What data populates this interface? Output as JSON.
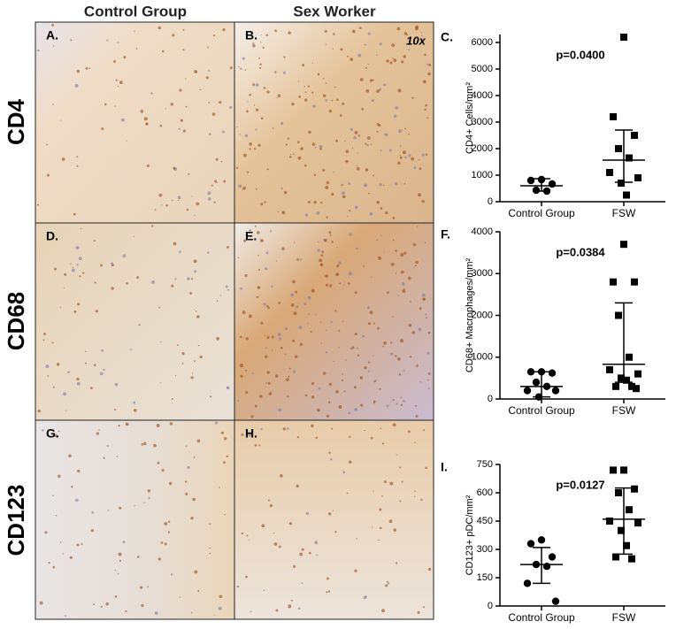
{
  "figure": {
    "column_headers": [
      "Control Group",
      "Sex Worker"
    ],
    "row_labels": [
      "CD4",
      "CD68",
      "CD123"
    ],
    "panels": [
      "A.",
      "B.",
      "D.",
      "E.",
      "G.",
      "H."
    ],
    "magnification": "10x"
  },
  "chart_data": [
    {
      "type": "scatter",
      "panel_label": "C.",
      "annotation": "p=0.0400",
      "y_label": "CD4+ Cells/mm²",
      "categories": [
        "Control Group",
        "FSW"
      ],
      "points": [
        [
          833,
          800,
          667,
          433,
          400
        ],
        [
          6200,
          3200,
          2500,
          2000,
          1650,
          1100,
          900,
          700,
          250
        ]
      ],
      "center": [
        600,
        1567
      ],
      "upper": [
        867,
        2700
      ],
      "lower": [
        400,
        733
      ],
      "ylim": [
        0,
        6300
      ],
      "yticks": [
        0,
        1000,
        2000,
        3000,
        4000,
        5000,
        6000
      ]
    },
    {
      "type": "scatter",
      "panel_label": "F.",
      "annotation": "p=0.0384",
      "y_label": "CD68+ Macrophages/mm²",
      "categories": [
        "Control Group",
        "FSW"
      ],
      "points": [
        [
          650,
          650,
          620,
          400,
          300,
          200,
          200,
          50
        ],
        [
          3700,
          2800,
          2800,
          2000,
          1000,
          700,
          600,
          500,
          450,
          300,
          300,
          250
        ]
      ],
      "center": [
        300,
        830
      ],
      "upper": [
        650,
        2300
      ],
      "lower": [
        50,
        400
      ],
      "ylim": [
        0,
        4000
      ],
      "yticks": [
        0,
        1000,
        2000,
        3000,
        4000
      ]
    },
    {
      "type": "scatter",
      "panel_label": "I.",
      "annotation": "p=0.0127",
      "y_label": "CD123+ pDC/mm²",
      "categories": [
        "Control Group",
        "FSW"
      ],
      "points": [
        [
          350,
          330,
          260,
          220,
          210,
          120,
          25
        ],
        [
          720,
          720,
          620,
          600,
          510,
          450,
          440,
          400,
          320,
          260,
          250
        ]
      ],
      "center": [
        220,
        460
      ],
      "upper": [
        310,
        625
      ],
      "lower": [
        120,
        275
      ],
      "ylim": [
        0,
        750
      ],
      "yticks": [
        0,
        150,
        300,
        450,
        600,
        750
      ]
    }
  ]
}
